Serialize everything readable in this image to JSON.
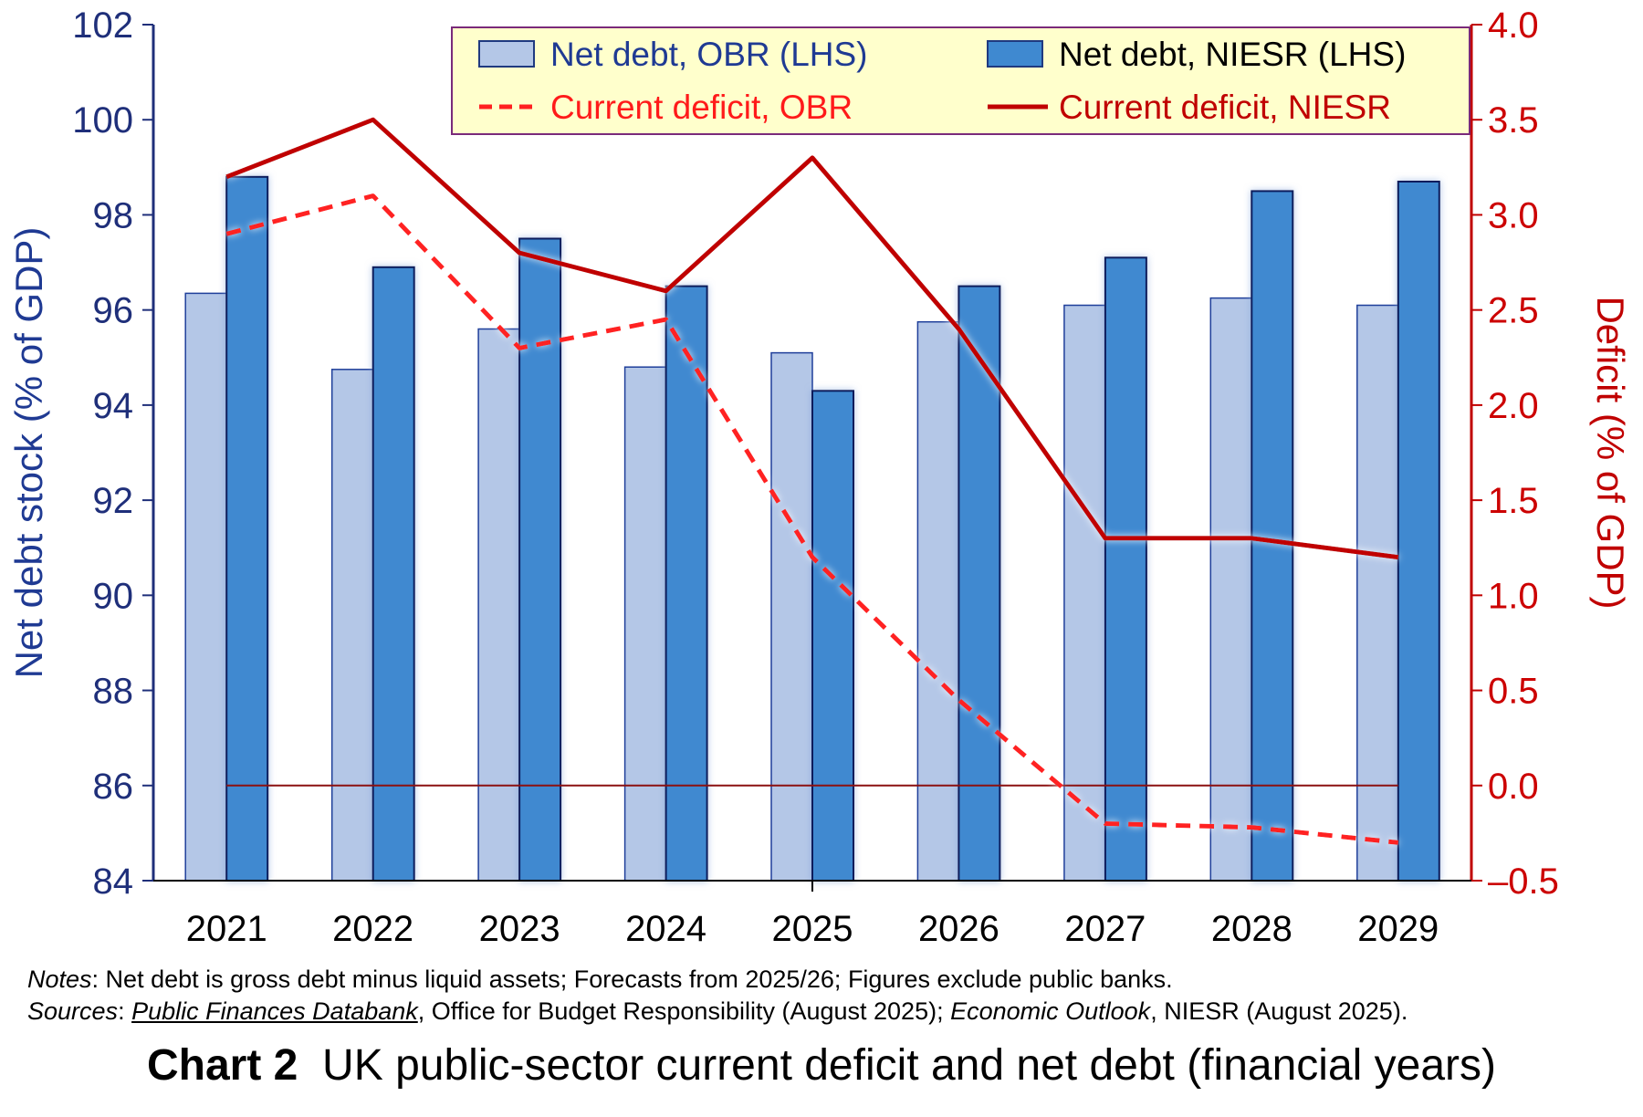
{
  "chart_data": {
    "type": "bar",
    "categories": [
      "2021",
      "2022",
      "2023",
      "2024",
      "2025",
      "2026",
      "2027",
      "2028",
      "2029"
    ],
    "series": [
      {
        "name": "Net debt, OBR (LHS)",
        "axis": "left",
        "kind": "bar",
        "color": "#b4c7e7",
        "values": [
          96.35,
          94.75,
          95.6,
          94.8,
          95.1,
          95.75,
          96.1,
          96.25,
          96.1
        ]
      },
      {
        "name": "Net debt, NIESR (LHS)",
        "axis": "left",
        "kind": "bar",
        "color": "#3f89d0",
        "values": [
          98.8,
          96.9,
          97.5,
          96.5,
          94.3,
          96.5,
          97.1,
          98.5,
          98.7
        ]
      },
      {
        "name": "Current deficit, OBR",
        "axis": "right",
        "kind": "line",
        "style": "dashed",
        "color": "#ff2020",
        "values": [
          2.9,
          3.1,
          2.3,
          2.45,
          1.2,
          0.45,
          -0.2,
          -0.22,
          -0.3
        ]
      },
      {
        "name": "Current deficit, NIESR",
        "axis": "right",
        "kind": "line",
        "style": "solid",
        "color": "#c00000",
        "values": [
          3.2,
          3.5,
          2.8,
          2.6,
          3.3,
          2.4,
          1.3,
          1.3,
          1.2
        ]
      }
    ],
    "ylabel": "Net debt stock (% of GDP)",
    "y2label": "Deficit (% of GDP)",
    "ylim": [
      84,
      102
    ],
    "y2lim": [
      -0.5,
      4.0
    ],
    "yticks": [
      "84",
      "86",
      "88",
      "90",
      "92",
      "94",
      "96",
      "98",
      "100",
      "102"
    ],
    "y2ticks": [
      "–0.5",
      "0.0",
      "0.5",
      "1.0",
      "1.5",
      "2.0",
      "2.5",
      "3.0",
      "3.5",
      "4.0"
    ],
    "legend_position": "top",
    "grid": false
  },
  "notes_label": "Notes",
  "notes_text": ": Net debt is gross debt minus liquid assets; Forecasts from 2025/26; Figures exclude public banks.",
  "sources_label": "Sources",
  "sources_sep": ": ",
  "sources_link": "Public Finances Databank",
  "sources_text1": ", Office for Budget Responsibility (August 2025); ",
  "sources_italic2": "Economic Outlook",
  "sources_text2": ", NIESR (August 2025).",
  "caption_bold": "Chart 2",
  "caption_text": "UK public-sector current deficit and net debt (financial years)"
}
